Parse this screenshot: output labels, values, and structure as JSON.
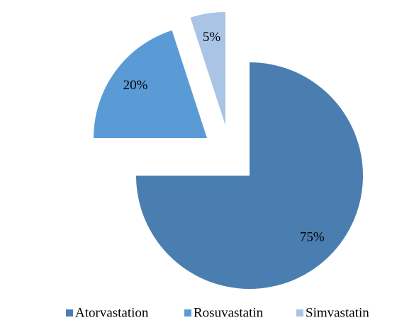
{
  "chart_data": {
    "type": "pie",
    "categories": [
      "Atorvastation",
      "Rosuvastatin",
      "Simvastatin"
    ],
    "values": [
      75,
      20,
      5
    ],
    "value_labels": [
      "75%",
      "20%",
      "5%"
    ],
    "colors": [
      "#4a7eb1",
      "#5b9bd5",
      "#aac4e5"
    ],
    "legend": "bottom"
  }
}
